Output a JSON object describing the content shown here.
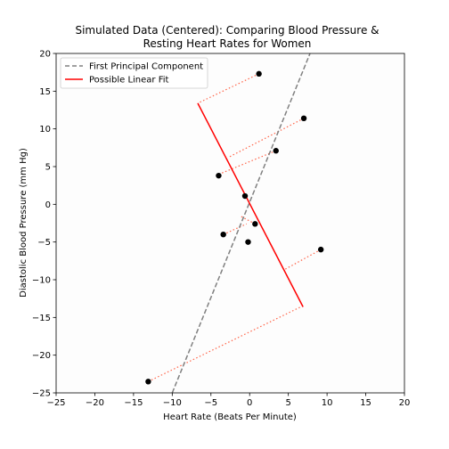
{
  "chart_data": {
    "type": "scatter",
    "title_lines": [
      "Simulated Data (Centered): Comparing Blood Pressure &",
      "Resting Heart Rates for Women"
    ],
    "xlabel": "Heart Rate (Beats Per Minute)",
    "ylabel": "Diastolic Blood Pressure (mm Hg)",
    "xlim": [
      -25,
      20
    ],
    "ylim": [
      -25,
      20
    ],
    "xticks": [
      -25,
      -20,
      -15,
      -10,
      -5,
      0,
      5,
      10,
      15,
      20
    ],
    "yticks": [
      -25,
      -20,
      -15,
      -10,
      -5,
      0,
      5,
      10,
      15,
      20
    ],
    "legend_position": "top-left",
    "points": [
      {
        "x": 1.2,
        "y": 17.3
      },
      {
        "x": 7.0,
        "y": 11.4
      },
      {
        "x": 3.4,
        "y": 7.1
      },
      {
        "x": -4.0,
        "y": 3.8
      },
      {
        "x": -0.6,
        "y": 1.1
      },
      {
        "x": 0.7,
        "y": -2.6
      },
      {
        "x": -3.4,
        "y": -4.0
      },
      {
        "x": -0.2,
        "y": -5.0
      },
      {
        "x": 9.2,
        "y": -6.0
      },
      {
        "x": -13.1,
        "y": -23.5
      }
    ],
    "projection_segments": [
      {
        "from": [
          1.2,
          17.3
        ],
        "to": [
          -6.7,
          13.4
        ]
      },
      {
        "from": [
          7.0,
          11.4
        ],
        "to": [
          -2.6,
          6.3
        ]
      },
      {
        "from": [
          3.4,
          7.1
        ],
        "to": [
          -3.7,
          4.1
        ]
      },
      {
        "from": [
          0.7,
          -2.6
        ],
        "to": [
          -1.3,
          -1.5
        ]
      },
      {
        "from": [
          -3.4,
          -4.0
        ],
        "to": [
          -0.4,
          -2.6
        ]
      },
      {
        "from": [
          9.2,
          -6.0
        ],
        "to": [
          4.6,
          -8.6
        ]
      },
      {
        "from": [
          -13.1,
          -23.5
        ],
        "to": [
          6.6,
          -13.6
        ]
      }
    ],
    "series": [
      {
        "name": "First Principal Component",
        "style": "dashed",
        "color": "#808080",
        "x": [
          -10.0,
          7.8
        ],
        "y": [
          -25.0,
          20.0
        ]
      },
      {
        "name": "Possible Linear Fit",
        "style": "solid",
        "color": "#ff0000",
        "x": [
          -6.7,
          6.9
        ],
        "y": [
          13.4,
          -13.6
        ]
      }
    ],
    "point_color": "#000000",
    "projection_color": "#ff6347"
  }
}
